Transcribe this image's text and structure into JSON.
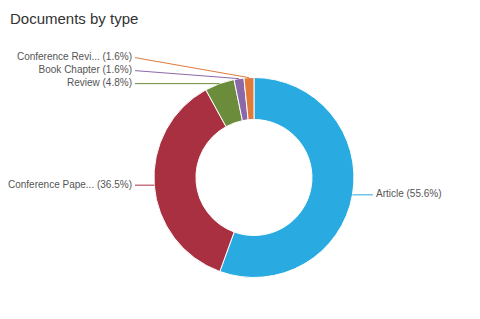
{
  "chart_data": {
    "type": "pie",
    "title": "Documents by type",
    "categories": [
      "Article (55.6%)",
      "Conference Pape... (36.5%)",
      "Review (4.8%)",
      "Book Chapter (1.6%)",
      "Conference Revi... (1.6%)"
    ],
    "values": [
      55.6,
      36.5,
      4.8,
      1.6,
      1.6
    ],
    "colors": [
      "#29ABE2",
      "#A93040",
      "#6B8C3A",
      "#8B68A8",
      "#E07A3A"
    ]
  }
}
